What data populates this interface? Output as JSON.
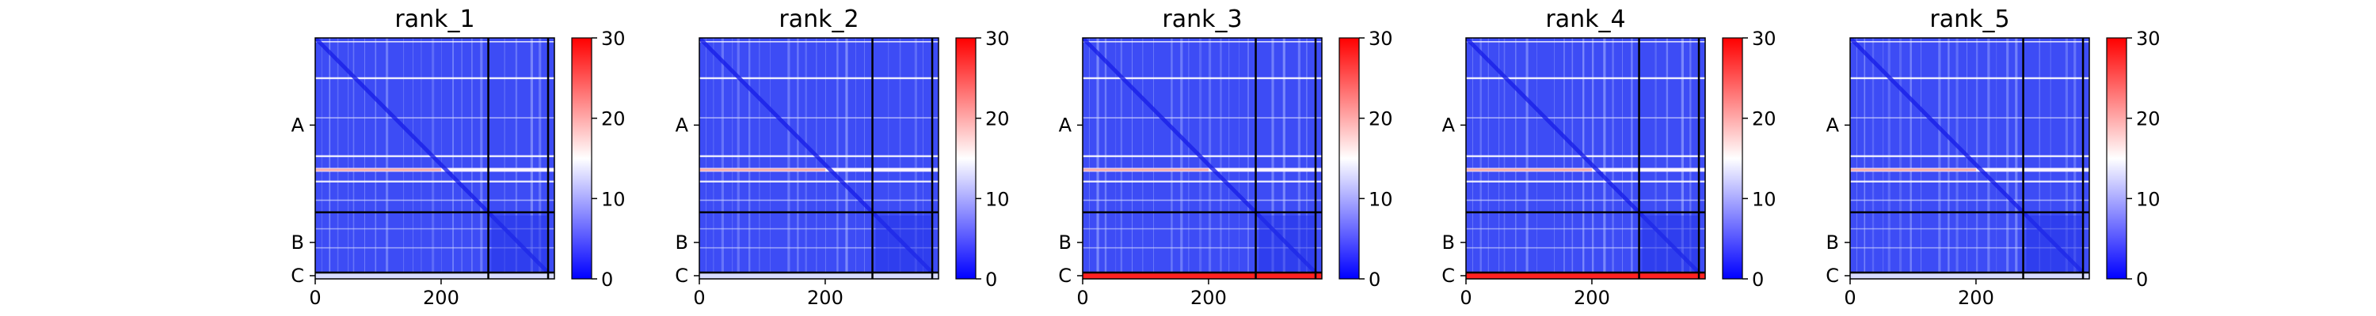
{
  "chart_data": [
    {
      "type": "heatmap",
      "title": "rank_1",
      "xticks": [
        0,
        200
      ],
      "xlim": [
        0,
        380
      ],
      "yticks": [
        "A",
        "B",
        "C"
      ],
      "colorbar": {
        "ticks": [
          0,
          10,
          20,
          30
        ],
        "range": [
          0,
          30
        ],
        "colormap": "bwr"
      },
      "chain_boundaries": [
        275,
        370
      ],
      "bottom_row_level": "low"
    },
    {
      "type": "heatmap",
      "title": "rank_2",
      "xticks": [
        0,
        200
      ],
      "xlim": [
        0,
        380
      ],
      "yticks": [
        "A",
        "B",
        "C"
      ],
      "colorbar": {
        "ticks": [
          0,
          10,
          20,
          30
        ],
        "range": [
          0,
          30
        ],
        "colormap": "bwr"
      },
      "chain_boundaries": [
        275,
        370
      ],
      "bottom_row_level": "low"
    },
    {
      "type": "heatmap",
      "title": "rank_3",
      "xticks": [
        0,
        200
      ],
      "xlim": [
        0,
        380
      ],
      "yticks": [
        "A",
        "B",
        "C"
      ],
      "colorbar": {
        "ticks": [
          0,
          10,
          20,
          30
        ],
        "range": [
          0,
          30
        ],
        "colormap": "bwr"
      },
      "chain_boundaries": [
        275,
        370
      ],
      "bottom_row_level": "high"
    },
    {
      "type": "heatmap",
      "title": "rank_4",
      "xticks": [
        0,
        200
      ],
      "xlim": [
        0,
        380
      ],
      "yticks": [
        "A",
        "B",
        "C"
      ],
      "colorbar": {
        "ticks": [
          0,
          10,
          20,
          30
        ],
        "range": [
          0,
          30
        ],
        "colormap": "bwr"
      },
      "chain_boundaries": [
        275,
        370
      ],
      "bottom_row_level": "high"
    },
    {
      "type": "heatmap",
      "title": "rank_5",
      "xticks": [
        0,
        200
      ],
      "xlim": [
        0,
        380
      ],
      "yticks": [
        "A",
        "B",
        "C"
      ],
      "colorbar": {
        "ticks": [
          0,
          10,
          20,
          30
        ],
        "range": [
          0,
          30
        ],
        "colormap": "bwr"
      },
      "chain_boundaries": [
        275,
        370
      ],
      "bottom_row_level": "low"
    }
  ],
  "colors": {
    "low": "#0000ff",
    "mid": "#ffffff",
    "high": "#ff0000",
    "axis": "#000000"
  }
}
